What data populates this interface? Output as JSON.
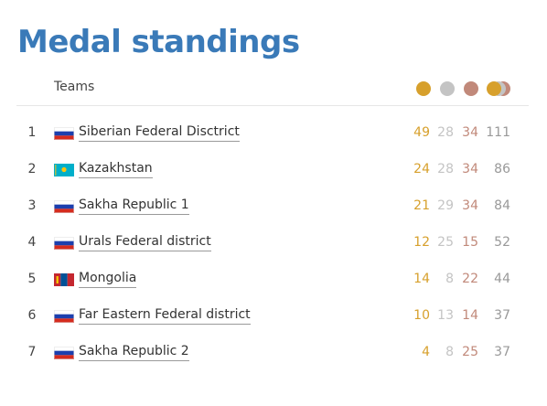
{
  "title": "Medal standings",
  "header": {
    "teams_label": "Teams"
  },
  "colors": {
    "title": "#3a7ab8",
    "gold": "#d7a02c",
    "silver": "#c4c4c4",
    "bronze": "#c1897a",
    "total": "#999999"
  },
  "icons": [
    "gold-medal-icon",
    "silver-medal-icon",
    "bronze-medal-icon",
    "total-medals-icon"
  ],
  "rows": [
    {
      "rank": "1",
      "flag": "russia-flag-icon",
      "team": "Siberian Federal Disctrict",
      "gold": "49",
      "silver": "28",
      "bronze": "34",
      "total": "111"
    },
    {
      "rank": "2",
      "flag": "kazakhstan-flag-icon",
      "team": "Kazakhstan",
      "gold": "24",
      "silver": "28",
      "bronze": "34",
      "total": "86"
    },
    {
      "rank": "3",
      "flag": "russia-flag-icon",
      "team": "Sakha Republic 1",
      "gold": "21",
      "silver": "29",
      "bronze": "34",
      "total": "84"
    },
    {
      "rank": "4",
      "flag": "russia-flag-icon",
      "team": "Urals Federal district",
      "gold": "12",
      "silver": "25",
      "bronze": "15",
      "total": "52"
    },
    {
      "rank": "5",
      "flag": "mongolia-flag-icon",
      "team": "Mongolia",
      "gold": "14",
      "silver": "8",
      "bronze": "22",
      "total": "44"
    },
    {
      "rank": "6",
      "flag": "russia-flag-icon",
      "team": "Far Eastern Federal district",
      "gold": "10",
      "silver": "13",
      "bronze": "14",
      "total": "37"
    },
    {
      "rank": "7",
      "flag": "russia-flag-icon",
      "team": "Sakha Republic 2",
      "gold": "4",
      "silver": "8",
      "bronze": "25",
      "total": "37"
    }
  ]
}
